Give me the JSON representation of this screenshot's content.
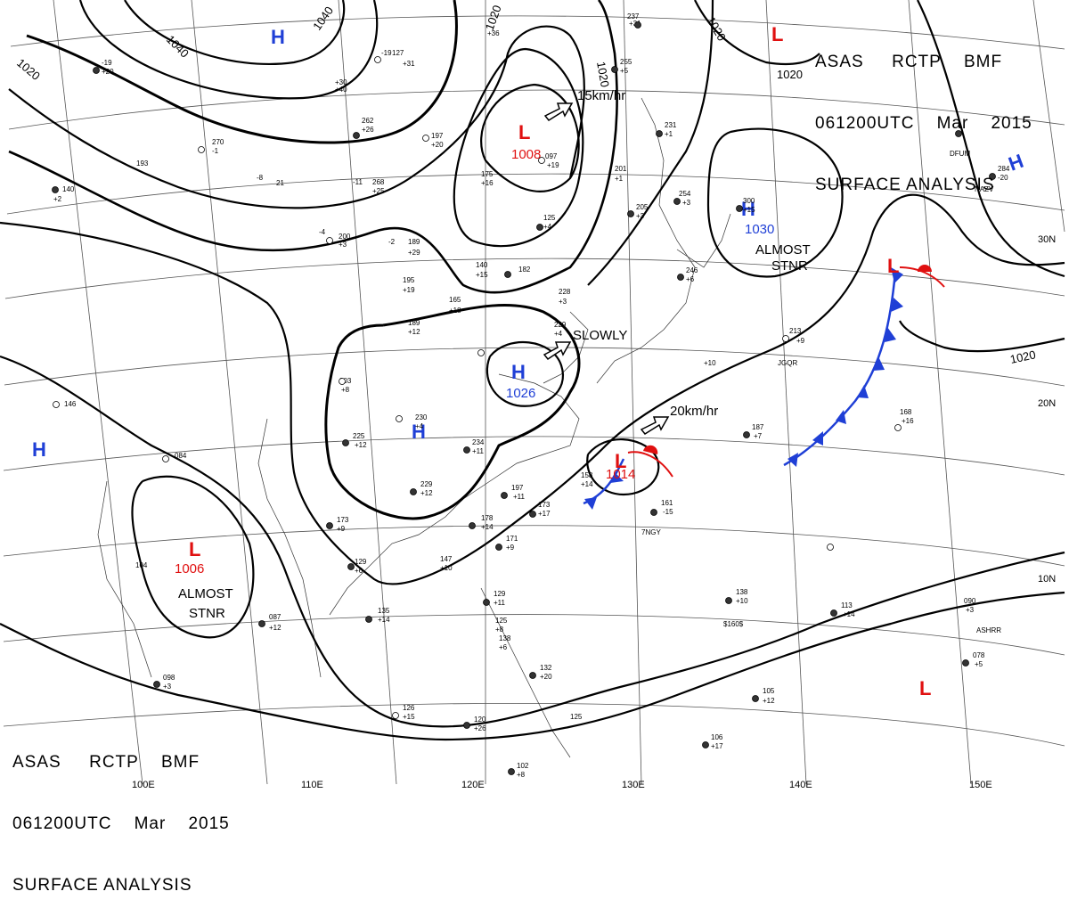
{
  "header": {
    "agency": "ASAS RCTP BMF",
    "agency_parts": [
      "ASAS",
      "RCTP",
      "BMF"
    ],
    "valid_time": "061200UTC Mar 2015",
    "valid_parts": [
      "061200UTC",
      "Mar",
      "2015"
    ],
    "product": "SURFACE ANALYSIS"
  },
  "grid": {
    "lon_labels": [
      "100E",
      "110E",
      "120E",
      "130E",
      "140E",
      "150E"
    ],
    "lat_labels": [
      "30N",
      "20N",
      "10N"
    ]
  },
  "isobar_labels": [
    "1040",
    "1040",
    "1020",
    "1020",
    "1020",
    "1020",
    "1020"
  ],
  "pressure_systems": [
    {
      "type": "H",
      "color": "#1f3fd6",
      "value": ""
    },
    {
      "type": "L",
      "color": "#e01010",
      "value": ""
    },
    {
      "type": "L",
      "color": "#e01010",
      "value": "1008"
    },
    {
      "type": "H",
      "color": "#1f3fd6",
      "value": "1026"
    },
    {
      "type": "H",
      "color": "#1f3fd6",
      "value": ""
    },
    {
      "type": "H",
      "color": "#1f3fd6",
      "value": "1030"
    },
    {
      "type": "H",
      "color": "#1f3fd6",
      "value": ""
    },
    {
      "type": "L",
      "color": "#e01010",
      "value": ""
    },
    {
      "type": "L",
      "color": "#e01010",
      "value": "1014"
    },
    {
      "type": "H",
      "color": "#1f3fd6",
      "value": ""
    },
    {
      "type": "L",
      "color": "#e01010",
      "value": "1006"
    },
    {
      "type": "L",
      "color": "#e01010",
      "value": ""
    }
  ],
  "movement_labels": [
    "15km/hr",
    "SLOWLY",
    "20km/hr"
  ],
  "stationary_labels": [
    {
      "line1": "ALMOST",
      "line2": "STNR"
    },
    {
      "line1": "ALMOST",
      "line2": "STNR"
    }
  ],
  "station_plots": [
    "-19",
    "127",
    "+31",
    "+40",
    "+30",
    "+36",
    "270",
    "-1",
    "193",
    "140",
    "+2",
    "262",
    "+26",
    "197",
    "+20",
    "-11",
    "268",
    "+25",
    "-8",
    "21",
    "175",
    "+16",
    "097",
    "+19",
    "-4",
    "200",
    "+3",
    "-2",
    "189",
    "+29",
    "140",
    "+15",
    "182",
    "165",
    "+18",
    "195",
    "+19",
    "189",
    "+12",
    "228",
    "+3",
    "229",
    "+4",
    "213",
    "+9",
    "+10",
    "187",
    "+7",
    "168",
    "+16",
    "203",
    "+8",
    "146",
    "084",
    "230",
    "+4",
    "225",
    "+12",
    "234",
    "+11",
    "229",
    "+12",
    "158",
    "+14",
    "197",
    "+11",
    "173",
    "+17",
    "161",
    "-15",
    "173",
    "+9",
    "129",
    "+6",
    "147",
    "+10",
    "178",
    "+14",
    "171",
    "+9",
    "135",
    "+14",
    "087",
    "+12",
    "104",
    "129",
    "+11",
    "125",
    "+8",
    "138",
    "+6",
    "132",
    "+20",
    "098",
    "+3",
    "126",
    "+15",
    "120",
    "+26",
    "125",
    "138",
    "+10",
    "113",
    "+14",
    "090",
    "+3",
    "078",
    "+5",
    "105",
    "+12",
    "106",
    "+17",
    "102",
    "+8",
    "231",
    "+1",
    "201",
    "+1",
    "205",
    "+3",
    "125",
    "+4",
    "254",
    "+3",
    "300",
    "+15",
    "246",
    "+6",
    "237",
    "+31",
    "255",
    "+5",
    "-19",
    "+20",
    "284",
    "-20",
    "JGQR",
    "7NGY",
    "ASHRR",
    "NAZV",
    "DFUM",
    "$160$"
  ]
}
